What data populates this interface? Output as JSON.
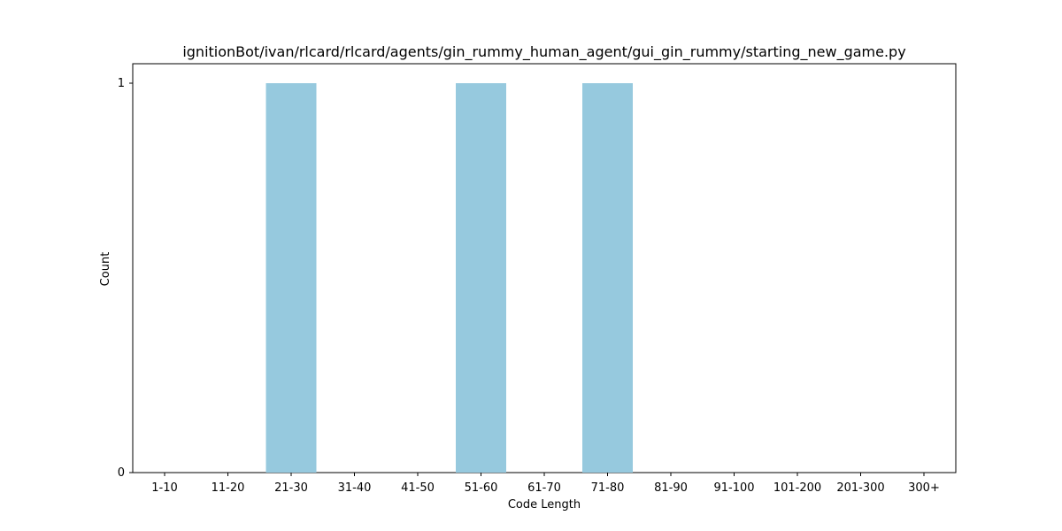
{
  "chart_data": {
    "type": "bar",
    "title": "ignitionBot/ivan/rlcard/rlcard/agents/gin_rummy_human_agent/gui_gin_rummy/starting_new_game.py",
    "xlabel": "Code Length",
    "ylabel": "Count",
    "categories": [
      "1-10",
      "11-20",
      "21-30",
      "31-40",
      "41-50",
      "51-60",
      "61-70",
      "71-80",
      "81-90",
      "91-100",
      "101-200",
      "201-300",
      "300+"
    ],
    "values": [
      0,
      0,
      1,
      0,
      0,
      1,
      0,
      1,
      0,
      0,
      0,
      0,
      0
    ],
    "ylim": [
      0,
      1.05
    ],
    "yticks": [
      "0",
      "1"
    ],
    "bar_color": "#96c9de",
    "grid": false
  }
}
